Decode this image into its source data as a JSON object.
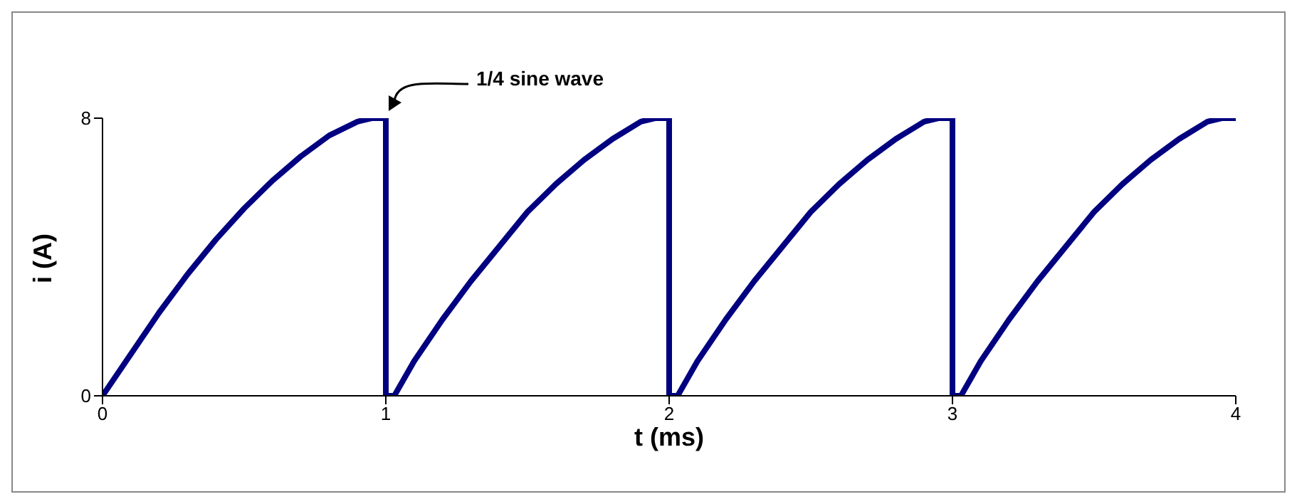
{
  "chart_data": {
    "type": "line",
    "xlabel": "t (ms)",
    "ylabel": "i (A)",
    "x": [
      0,
      0.1,
      0.2,
      0.3,
      0.4,
      0.5,
      0.6,
      0.7,
      0.8,
      0.9,
      0.95,
      1,
      1,
      1.03,
      1.1,
      1.2,
      1.3,
      1.4,
      1.5,
      1.6,
      1.7,
      1.8,
      1.9,
      1.95,
      2,
      2,
      2.03,
      2.1,
      2.2,
      2.3,
      2.4,
      2.5,
      2.6,
      2.7,
      2.8,
      2.9,
      2.95,
      3,
      3,
      3.03,
      3.1,
      3.2,
      3.3,
      3.4,
      3.5,
      3.6,
      3.7,
      3.8,
      3.9,
      3.95,
      4
    ],
    "series": [
      {
        "color": "#000080",
        "values": [
          0,
          1.2,
          2.4,
          3.5,
          4.5,
          5.4,
          6.2,
          6.9,
          7.5,
          7.9,
          8,
          8,
          0,
          0,
          1,
          2.2,
          3.3,
          4.3,
          5.3,
          6.1,
          6.8,
          7.4,
          7.9,
          8,
          8,
          0,
          0,
          1,
          2.2,
          3.3,
          4.3,
          5.3,
          6.1,
          6.8,
          7.4,
          7.9,
          8,
          8,
          0,
          0,
          1,
          2.2,
          3.3,
          4.3,
          5.3,
          6.1,
          6.8,
          7.4,
          7.9,
          8,
          8
        ]
      }
    ],
    "xlim": [
      0,
      4
    ],
    "xticks": [
      0,
      1,
      2,
      3,
      4
    ],
    "ylim": [
      0,
      8
    ],
    "yticks": [
      0,
      8
    ],
    "grid": false,
    "marker": "none",
    "line_style": "solid",
    "annotations": [
      "1/4 sine wave"
    ]
  }
}
